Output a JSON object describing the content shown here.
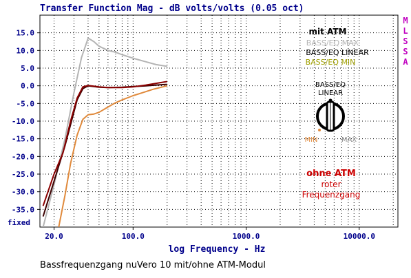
{
  "chart_data": {
    "type": "line",
    "title": "Transfer Function Mag - dB volts/volts (0.05 oct)",
    "xlabel": "log Frequency - Hz",
    "xscale": "log",
    "xlim": [
      15,
      22000
    ],
    "ylim": [
      -40,
      20
    ],
    "x_tick_labels": [
      {
        "value": 20,
        "label": "20.0"
      },
      {
        "value": 100,
        "label": "100.0"
      },
      {
        "value": 1000,
        "label": "1000.0"
      },
      {
        "value": 10000,
        "label": "10000.0"
      }
    ],
    "y_tick_labels": [
      {
        "value": 15,
        "label": "15.0"
      },
      {
        "value": 10,
        "label": "10.0"
      },
      {
        "value": 5,
        "label": "5.0"
      },
      {
        "value": 0,
        "label": "0.0"
      },
      {
        "value": -5,
        "label": "-5.0"
      },
      {
        "value": -10,
        "label": "-10.0"
      },
      {
        "value": -15,
        "label": "-15.0"
      },
      {
        "value": -20,
        "label": "-20.0"
      },
      {
        "value": -25,
        "label": "-25.0"
      },
      {
        "value": -30,
        "label": "-30.0"
      },
      {
        "value": -35,
        "label": "-35.0"
      }
    ],
    "y_bottom_label": "fixed",
    "right_labels": [
      "M",
      "L",
      "S",
      "S",
      "A"
    ],
    "grid": true,
    "series": [
      {
        "name": "BASS/EQ MAX",
        "color": "#b4b4b4",
        "x": [
          16,
          20,
          25,
          30,
          35,
          40,
          45,
          50,
          60,
          70,
          80,
          100,
          130,
          160,
          200
        ],
        "y": [
          -40,
          -28,
          -15,
          -2,
          8,
          13.5,
          12.5,
          11.2,
          10,
          9.5,
          8.8,
          7.8,
          6.8,
          6,
          5.5
        ]
      },
      {
        "name": "BASS/EQ LINEAR",
        "color": "#3c0000",
        "x": [
          16,
          20,
          25,
          28,
          32,
          36,
          40,
          45,
          50,
          60,
          80,
          100,
          130,
          160,
          200
        ],
        "y": [
          -37,
          -27,
          -17,
          -11,
          -4,
          -0.8,
          0,
          -0.2,
          -0.4,
          -0.5,
          -0.4,
          -0.2,
          0,
          0.2,
          0.4
        ]
      },
      {
        "name": "BASS/EQ MIN",
        "color": "#e08a3c",
        "x": [
          22,
          25,
          28,
          32,
          36,
          40,
          45,
          50,
          60,
          70,
          80,
          100,
          120,
          150,
          200
        ],
        "y": [
          -40,
          -31,
          -22,
          -14,
          -9.5,
          -8.2,
          -8,
          -7.5,
          -6,
          -4.8,
          -4,
          -2.8,
          -2,
          -1,
          0
        ]
      },
      {
        "name": "ohne ATM",
        "color": "#8b0000",
        "x": [
          16,
          20,
          24,
          28,
          32,
          36,
          40,
          45,
          50,
          60,
          80,
          100,
          130,
          160,
          200
        ],
        "y": [
          -34,
          -25,
          -19,
          -10,
          -3.5,
          -0.3,
          0.1,
          -0.1,
          -0.3,
          -0.5,
          -0.5,
          -0.3,
          0.2,
          0.7,
          1.2
        ]
      }
    ],
    "annotations": {
      "mit_atm_title": "mit ATM",
      "legend_max": "BASS/EQ MAX",
      "legend_linear": "BASS/EQ LINEAR",
      "legend_min": "BASS/EQ MIN",
      "knob_label_line1": "BASS/EQ",
      "knob_label_line2": "LINEAR",
      "knob_min": "MIN",
      "knob_max": "MAX",
      "ohne_atm_title": "ohne ATM",
      "ohne_atm_line2": "roter",
      "ohne_atm_line3": "Frequenzgang"
    },
    "colors": {
      "title": "#00008b",
      "axis_text": "#00008b",
      "right_labels": "#c000c0",
      "legend_max": "#b4b4b4",
      "legend_linear": "#000000",
      "legend_min": "#a0a000",
      "ohne_atm": "#cc0000",
      "knob_min": "#e08a3c"
    }
  },
  "caption": "Bassfrequenzgang nuVero 10 mit/ohne ATM-Modul"
}
